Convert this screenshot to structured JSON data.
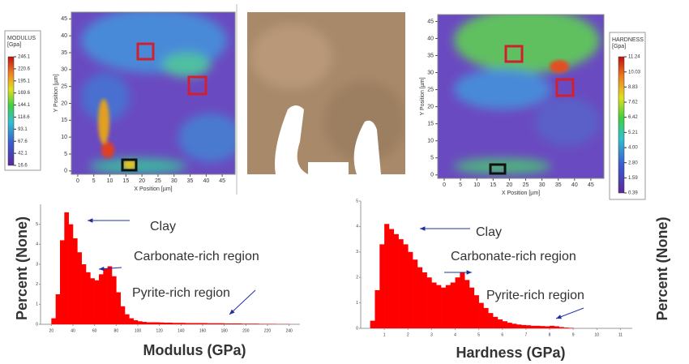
{
  "chart_data": [
    {
      "type": "map",
      "xlabel": "X Position [µm]",
      "ylabel": "Y Position [µm]",
      "xlim": [
        -2,
        49
      ],
      "ylim": [
        -1,
        47
      ],
      "xticks": [
        0,
        5,
        10,
        15,
        20,
        25,
        30,
        35,
        40,
        45
      ],
      "yticks": [
        0,
        5,
        10,
        15,
        20,
        25,
        30,
        35,
        40,
        45
      ],
      "colorbar": {
        "title": "MODULUS",
        "unit": "[Gpa]",
        "ticks": [
          16.6,
          42.1,
          67.6,
          93.1,
          118.6,
          144.1,
          169.6,
          195.1,
          220.6,
          246.1
        ]
      }
    },
    {
      "type": "map",
      "xlabel": "X Position [µm]",
      "ylabel": "Y Position [µm]",
      "xlim": [
        -2,
        49
      ],
      "ylim": [
        -1,
        47
      ],
      "xticks": [
        0,
        5,
        10,
        15,
        20,
        25,
        30,
        35,
        40,
        45
      ],
      "yticks": [
        0,
        5,
        10,
        15,
        20,
        25,
        30,
        35,
        40,
        45
      ],
      "colorbar": {
        "title": "HARDNESS",
        "unit": "[Gpa]",
        "ticks": [
          0.39,
          1.59,
          {
            "value": 2.8,
            "label": "2.80"
          },
          {
            "value": 4,
            "label": "4.00"
          },
          5.21,
          6.42,
          7.62,
          8.83,
          10.03,
          11.24
        ]
      }
    },
    {
      "type": "histogram",
      "xlabel": "Modulus (GPa)",
      "ylabel": "Percent (None)",
      "color": "#ff0000",
      "xlim": [
        10,
        250
      ],
      "ylim": [
        0,
        6
      ],
      "xticks": [
        20,
        40,
        60,
        80,
        100,
        120,
        140,
        160,
        180,
        200,
        220,
        240
      ],
      "yticks": [
        0,
        1,
        2,
        3,
        4,
        5
      ],
      "bins": [
        20,
        24,
        28,
        32,
        36,
        40,
        44,
        48,
        52,
        56,
        60,
        64,
        68,
        72,
        76,
        80,
        84,
        88,
        92,
        96,
        100,
        104,
        108,
        112,
        116,
        120,
        124,
        128,
        132,
        136,
        140,
        144,
        148,
        152,
        156,
        160,
        164,
        168,
        172,
        176,
        180,
        184,
        188,
        192,
        196,
        200,
        204,
        208,
        212,
        216,
        220,
        224,
        228,
        232,
        236,
        240
      ],
      "values": [
        0.3,
        1.5,
        4.2,
        5.6,
        5.0,
        4.3,
        3.6,
        3.0,
        2.6,
        2.3,
        2.2,
        2.5,
        2.8,
        2.9,
        2.4,
        1.6,
        0.9,
        0.5,
        0.3,
        0.2,
        0.15,
        0.12,
        0.1,
        0.1,
        0.1,
        0.09,
        0.08,
        0.08,
        0.07,
        0.07,
        0.07,
        0.06,
        0.06,
        0.06,
        0.06,
        0.06,
        0.05,
        0.05,
        0.05,
        0.05,
        0.04,
        0.04,
        0.04,
        0.04,
        0.03,
        0.03,
        0.03,
        0.03,
        0.02,
        0.02,
        0.02,
        0.02,
        0.01,
        0.01,
        0.01
      ],
      "annotations": [
        "Clay",
        "Carbonate-rich region",
        "Pyrite-rich region"
      ]
    },
    {
      "type": "histogram",
      "xlabel": "Hardness (GPa)",
      "ylabel": "Percent (None)",
      "color": "#ff0000",
      "xlim": [
        0,
        11.5
      ],
      "ylim": [
        0,
        5
      ],
      "xticks": [
        1,
        2,
        3,
        4,
        5,
        6,
        7,
        8,
        9,
        10,
        11
      ],
      "yticks": [
        0,
        1,
        2,
        3,
        4,
        5
      ],
      "bins": [
        0.4,
        0.6,
        0.8,
        1.0,
        1.2,
        1.4,
        1.6,
        1.8,
        2.0,
        2.2,
        2.4,
        2.6,
        2.8,
        3.0,
        3.2,
        3.4,
        3.6,
        3.8,
        4.0,
        4.2,
        4.4,
        4.6,
        4.8,
        5.0,
        5.2,
        5.4,
        5.6,
        5.8,
        6.0,
        6.2,
        6.4,
        6.6,
        6.8,
        7.0,
        7.2,
        7.4,
        7.6,
        7.8,
        8.0,
        8.2,
        8.4,
        8.6,
        8.8,
        9.0
      ],
      "values": [
        0.3,
        1.5,
        3.3,
        4.1,
        3.9,
        3.7,
        3.5,
        3.3,
        3.0,
        2.7,
        2.4,
        2.2,
        2.0,
        1.8,
        1.7,
        1.6,
        1.7,
        1.8,
        2.0,
        2.2,
        1.9,
        1.6,
        1.3,
        1.0,
        0.8,
        0.6,
        0.45,
        0.35,
        0.28,
        0.22,
        0.18,
        0.15,
        0.13,
        0.12,
        0.1,
        0.1,
        0.09,
        0.08,
        0.1,
        0.08,
        0.05,
        0.03,
        0.02
      ],
      "annotations": [
        "Clay",
        "Carbonate-rich region",
        "Pyrite-rich region"
      ]
    }
  ]
}
